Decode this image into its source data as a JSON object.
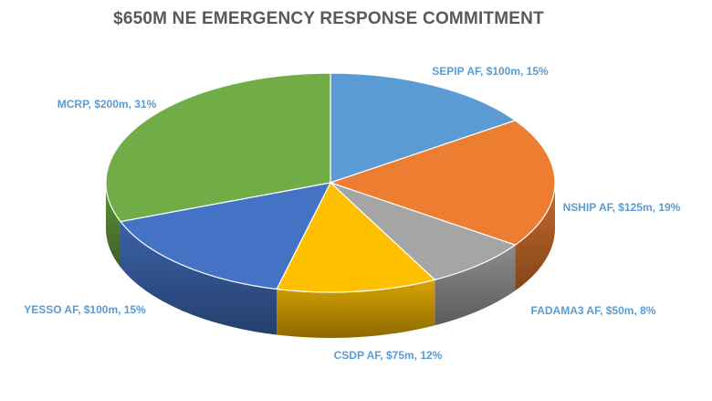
{
  "chart_data": {
    "type": "pie",
    "title": "$650M NE EMERGENCY  RESPONSE COMMITMENT",
    "slices": [
      {
        "name": "SEPIP AF",
        "value": 100,
        "percent": 15,
        "label": "SEPIP AF, $100m, 15%",
        "color": "#5b9bd5"
      },
      {
        "name": "NSHIP AF",
        "value": 125,
        "percent": 19,
        "label": "NSHIP AF, $125m, 19%",
        "color": "#ed7d31"
      },
      {
        "name": "FADAMA3 AF",
        "value": 50,
        "percent": 8,
        "label": "FADAMA3 AF, $50m, 8%",
        "color": "#a5a5a5"
      },
      {
        "name": "CSDP AF",
        "value": 75,
        "percent": 12,
        "label": "CSDP AF, $75m, 12%",
        "color": "#ffc000"
      },
      {
        "name": "YESSO AF",
        "value": 100,
        "percent": 15,
        "label": "YESSO AF, $100m, 15%",
        "color": "#4472c4"
      },
      {
        "name": "MCRP",
        "value": 200,
        "percent": 31,
        "label": "MCRP, $200m, 31%",
        "color": "#70ad47"
      }
    ],
    "label_color": "#5b9bd5"
  }
}
